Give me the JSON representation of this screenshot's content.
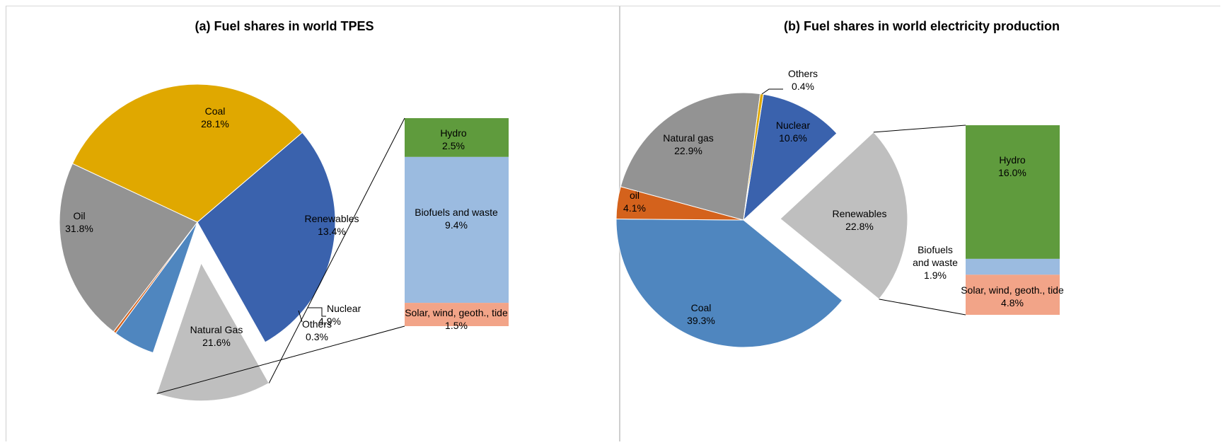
{
  "chart_data": [
    {
      "type": "pie",
      "subtype": "bar-of-pie",
      "title": "(a) Fuel shares in world TPES",
      "slices": [
        {
          "name": "Coal",
          "value": 28.1,
          "label": "28.1%",
          "color": "#3a62ad"
        },
        {
          "name": "Renewables",
          "value": 13.4,
          "label": "13.4%",
          "color": "#bfbfbf",
          "exploded": true
        },
        {
          "name": "Nuclear",
          "value": 4.9,
          "label": "4.9%",
          "color": "#4f86bf"
        },
        {
          "name": "Others",
          "value": 0.3,
          "label": "0.3%",
          "color": "#d4621c"
        },
        {
          "name": "Natural Gas",
          "value": 21.6,
          "label": "21.6%",
          "color": "#939393"
        },
        {
          "name": "Oil",
          "value": 31.8,
          "label": "31.8%",
          "color": "#e0a800"
        }
      ],
      "breakdown_of": "Renewables",
      "breakdown": [
        {
          "name": "Hydro",
          "value": 2.5,
          "label": "2.5%",
          "color": "#5f9b3d"
        },
        {
          "name": "Biofuels and waste",
          "value": 9.4,
          "label": "9.4%",
          "color": "#9bbbe0"
        },
        {
          "name": "Solar, wind, geoth., tide",
          "value": 1.5,
          "label": "1.5%",
          "color": "#f2a488"
        }
      ]
    },
    {
      "type": "pie",
      "subtype": "bar-of-pie",
      "title": "(b) Fuel shares in world electricity production",
      "slices": [
        {
          "name": "Nuclear",
          "value": 10.6,
          "label": "10.6%",
          "color": "#3a62ad"
        },
        {
          "name": "Renewables",
          "value": 22.8,
          "label": "22.8%",
          "color": "#bfbfbf",
          "exploded": true
        },
        {
          "name": "Coal",
          "value": 39.3,
          "label": "39.3%",
          "color": "#4f86bf"
        },
        {
          "name": "oil",
          "value": 4.1,
          "label": "4.1%",
          "color": "#d4621c"
        },
        {
          "name": "Natural gas",
          "value": 22.9,
          "label": "22.9%",
          "color": "#939393"
        },
        {
          "name": "Others",
          "value": 0.4,
          "label": "0.4%",
          "color": "#e0a800"
        }
      ],
      "breakdown_of": "Renewables",
      "breakdown": [
        {
          "name": "Hydro",
          "value": 16.0,
          "label": "16.0%",
          "color": "#5f9b3d"
        },
        {
          "name": "Biofuels and waste",
          "value": 1.9,
          "label": "1.9%",
          "color": "#9bbbe0"
        },
        {
          "name": "Solar, wind, geoth., tide",
          "value": 4.8,
          "label": "4.8%",
          "color": "#f2a488"
        }
      ]
    }
  ]
}
